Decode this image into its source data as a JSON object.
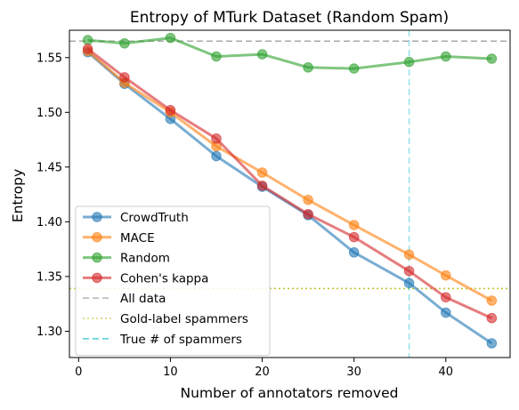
{
  "chart_data": {
    "type": "line",
    "title": "Entropy of MTurk Dataset (Random Spam)",
    "xlabel": "Number of annotators removed",
    "ylabel": "Entropy",
    "xlim": [
      -1,
      47
    ],
    "ylim": [
      1.276,
      1.575
    ],
    "xticks": [
      0,
      10,
      20,
      30,
      40
    ],
    "yticks": [
      1.3,
      1.35,
      1.4,
      1.45,
      1.5,
      1.55
    ],
    "ytick_labels": [
      "1.30",
      "1.35",
      "1.40",
      "1.45",
      "1.50",
      "1.55"
    ],
    "x": [
      1,
      5,
      10,
      15,
      20,
      25,
      30,
      36,
      40,
      45
    ],
    "series": [
      {
        "name": "CrowdTruth",
        "color": "#1f77b4",
        "values": [
          1.555,
          1.526,
          1.494,
          1.46,
          1.432,
          1.406,
          1.372,
          1.344,
          1.317,
          1.289
        ]
      },
      {
        "name": "MACE",
        "color": "#ff7f0e",
        "values": [
          1.556,
          1.527,
          1.5,
          1.469,
          1.445,
          1.42,
          1.397,
          1.37,
          1.351,
          1.328
        ]
      },
      {
        "name": "Random",
        "color": "#2ca02c",
        "values": [
          1.566,
          1.563,
          1.568,
          1.551,
          1.553,
          1.541,
          1.54,
          1.546,
          1.551,
          1.549
        ]
      },
      {
        "name": "Cohen's kappa",
        "color": "#d62728",
        "values": [
          1.558,
          1.532,
          1.502,
          1.476,
          1.433,
          1.407,
          1.386,
          1.355,
          1.331,
          1.312
        ]
      }
    ],
    "reference_lines": [
      {
        "name": "All data",
        "orientation": "horizontal",
        "value": 1.565,
        "style": "dashed",
        "color": "#a0a0a0"
      },
      {
        "name": "Gold-label spammers",
        "orientation": "horizontal",
        "value": 1.339,
        "style": "dotted",
        "color": "#bcbd22"
      },
      {
        "name": "True # of spammers",
        "orientation": "vertical",
        "value": 36,
        "style": "dashed",
        "color": "#17becf"
      }
    ],
    "legend_position": "lower-left",
    "grid": false
  }
}
